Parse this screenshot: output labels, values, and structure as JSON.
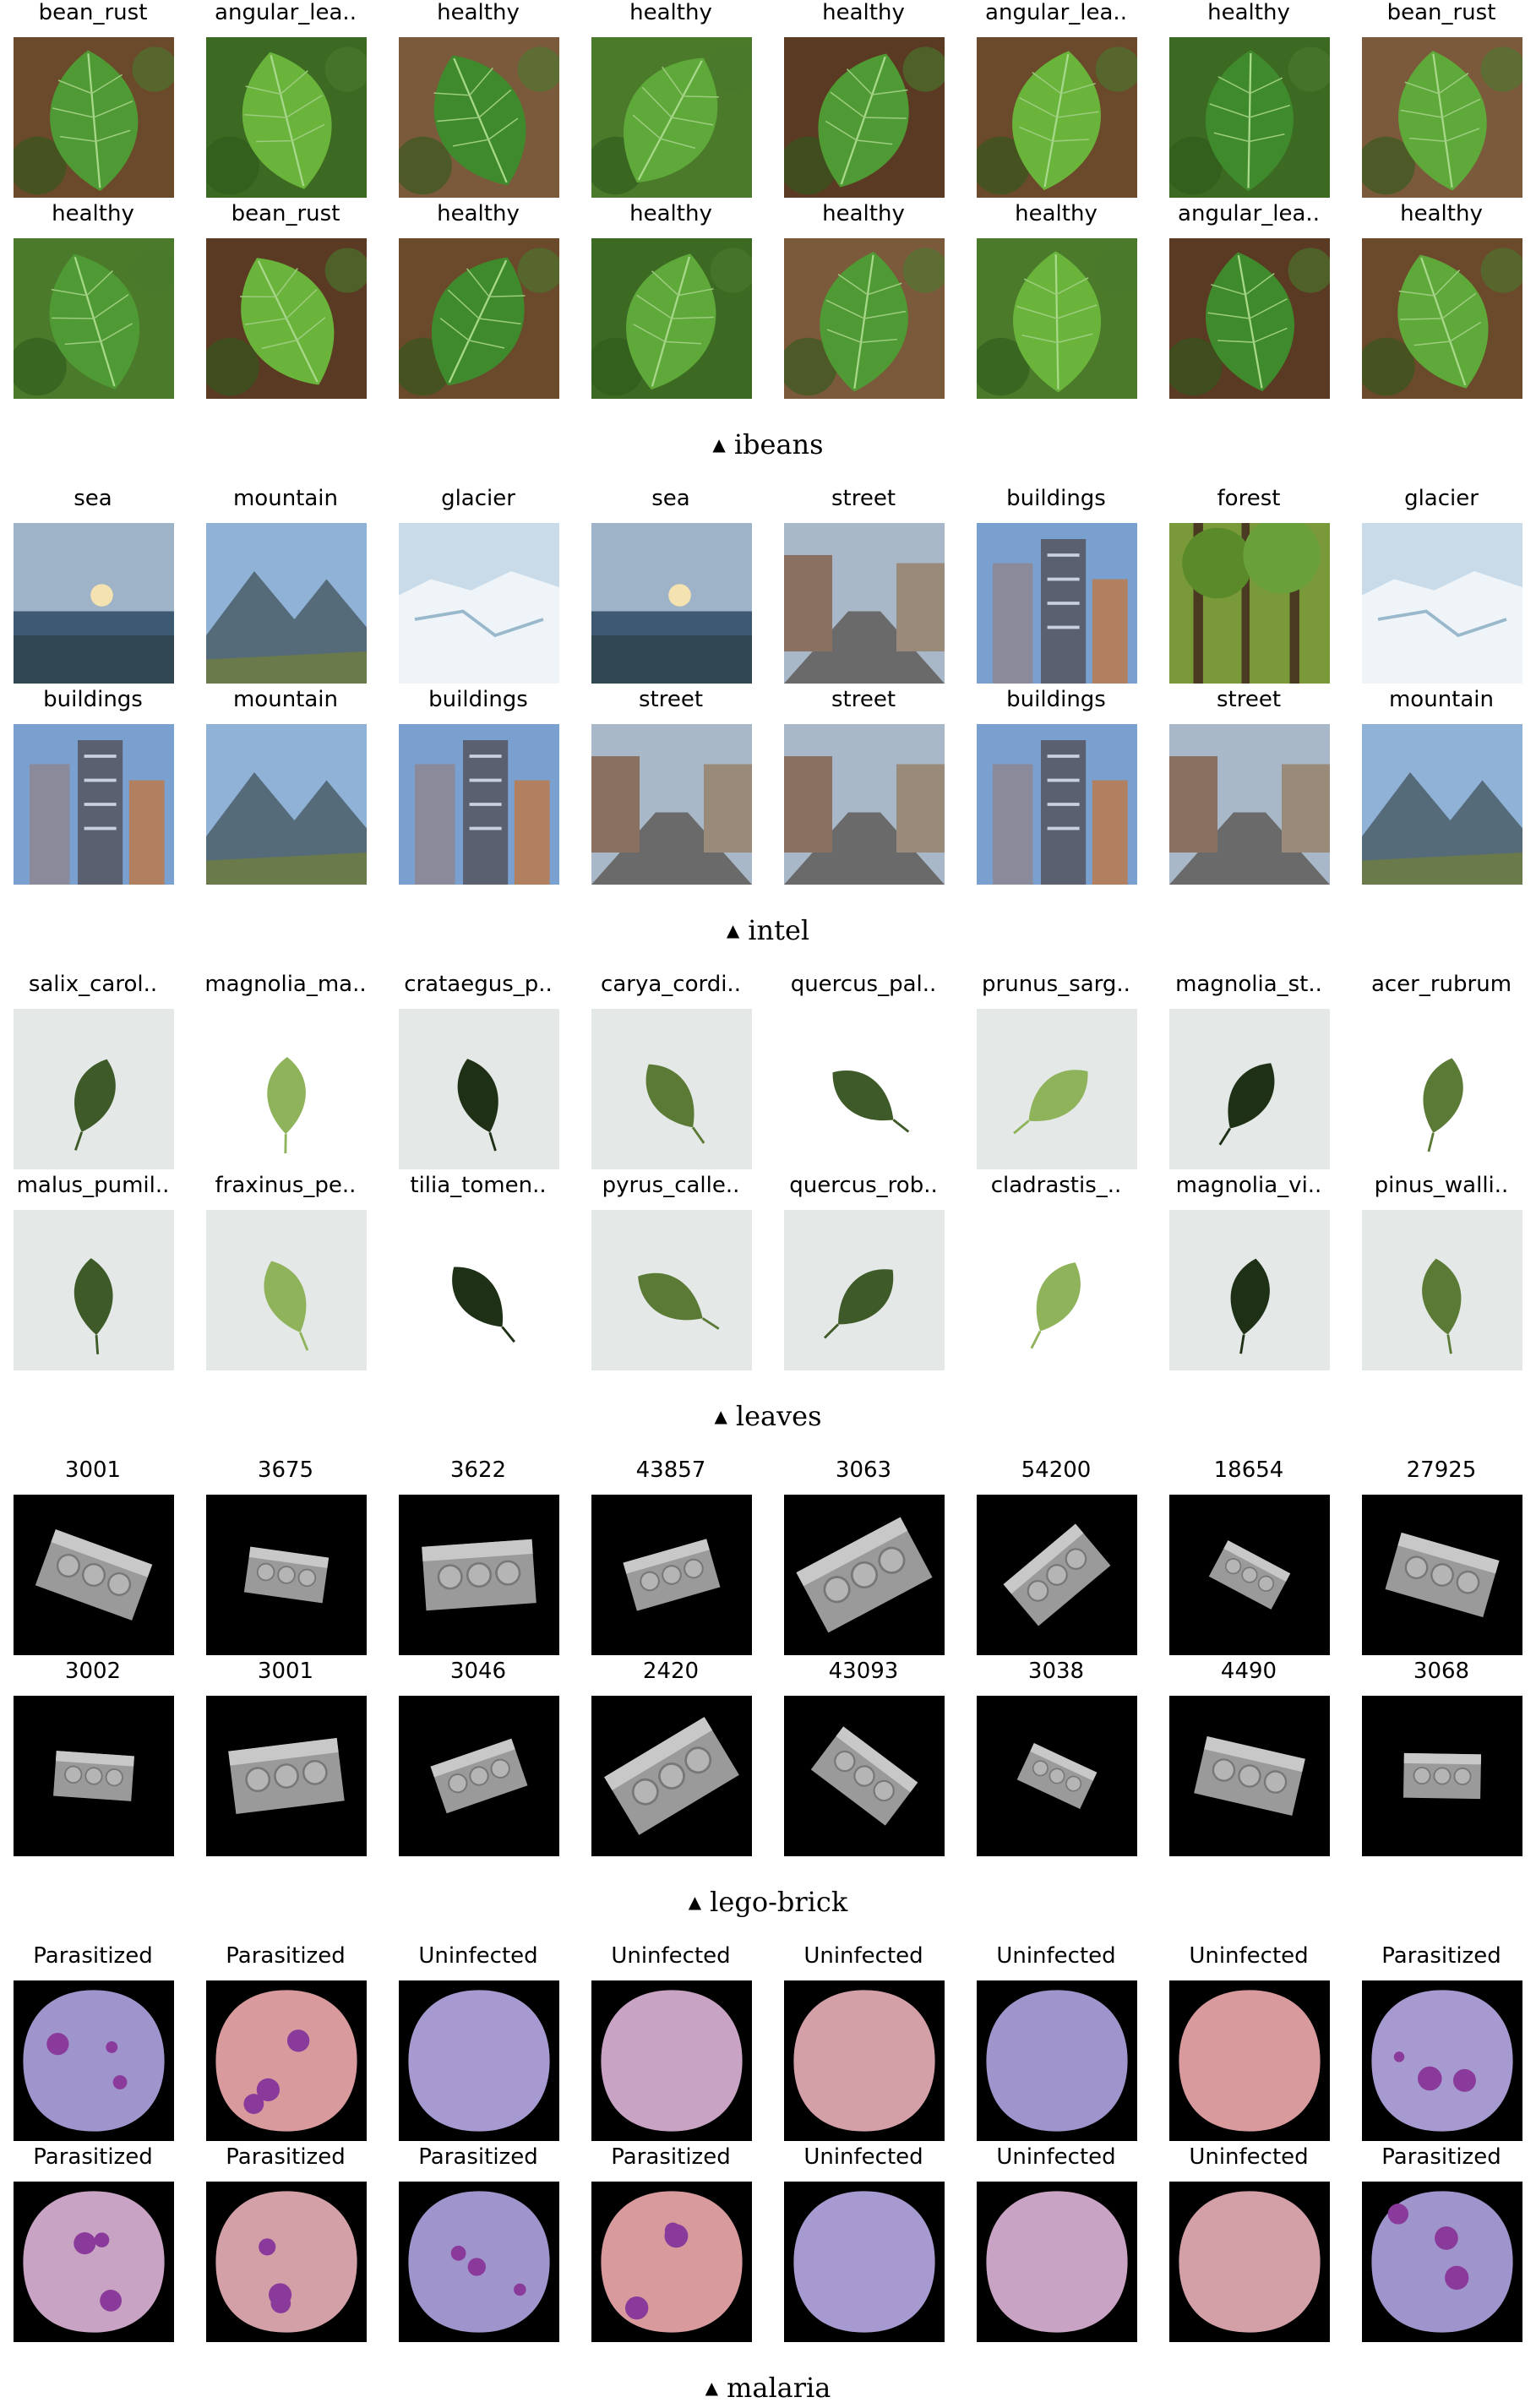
{
  "datasets": [
    {
      "name": "ibeans",
      "rows": [
        [
          "bean_rust",
          "angular_lea..",
          "healthy",
          "healthy",
          "healthy",
          "angular_lea..",
          "healthy",
          "bean_rust"
        ],
        [
          "healthy",
          "bean_rust",
          "healthy",
          "healthy",
          "healthy",
          "healthy",
          "angular_lea..",
          "healthy"
        ]
      ]
    },
    {
      "name": "intel",
      "rows": [
        [
          "sea",
          "mountain",
          "glacier",
          "sea",
          "street",
          "buildings",
          "forest",
          "glacier"
        ],
        [
          "buildings",
          "mountain",
          "buildings",
          "street",
          "street",
          "buildings",
          "street",
          "mountain"
        ]
      ]
    },
    {
      "name": "leaves",
      "rows": [
        [
          "salix_carol..",
          "magnolia_ma..",
          "crataegus_p..",
          "carya_cordi..",
          "quercus_pal..",
          "prunus_sarg..",
          "magnolia_st..",
          "acer_rubrum"
        ],
        [
          "malus_pumil..",
          "fraxinus_pe..",
          "tilia_tomen..",
          "pyrus_calle..",
          "quercus_rob..",
          "cladrastis_..",
          "magnolia_vi..",
          "pinus_walli.."
        ]
      ]
    },
    {
      "name": "lego-brick",
      "rows": [
        [
          "3001",
          "3675",
          "3622",
          "43857",
          "3063",
          "54200",
          "18654",
          "27925"
        ],
        [
          "3002",
          "3001",
          "3046",
          "2420",
          "43093",
          "3038",
          "4490",
          "3068"
        ]
      ]
    },
    {
      "name": "malaria",
      "rows": [
        [
          "Parasitized",
          "Parasitized",
          "Uninfected",
          "Uninfected",
          "Uninfected",
          "Uninfected",
          "Uninfected",
          "Parasitized"
        ],
        [
          "Parasitized",
          "Parasitized",
          "Parasitized",
          "Parasitized",
          "Uninfected",
          "Uninfected",
          "Uninfected",
          "Parasitized"
        ]
      ]
    }
  ]
}
